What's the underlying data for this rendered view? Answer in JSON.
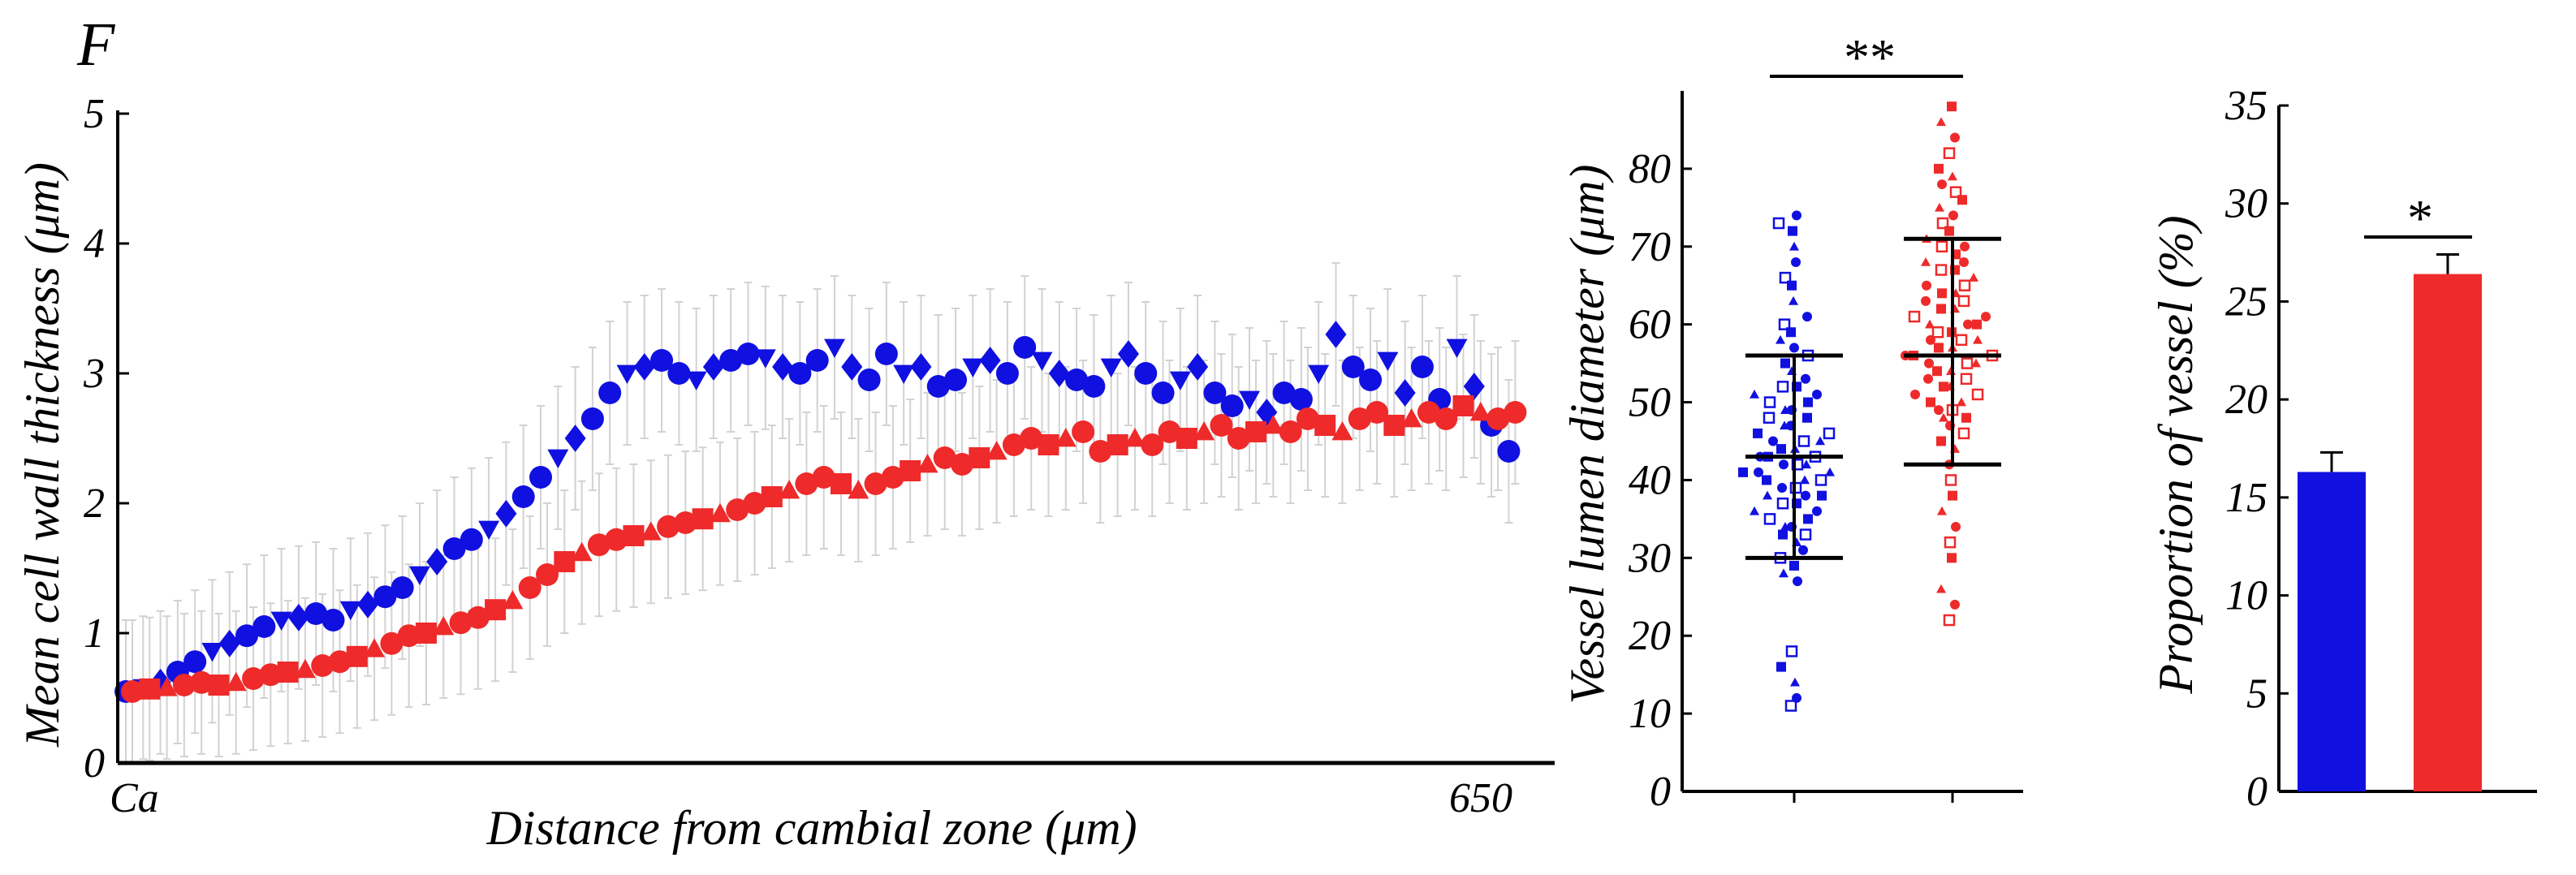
{
  "panel_label": "F",
  "colors": {
    "blue": "#1010e0",
    "red": "#ee2a2a",
    "errorbar": "#d2d2d2",
    "axis": "#000000"
  },
  "chart_data": [
    {
      "type": "scatter",
      "title": "",
      "xlabel": "Distance from cambial zone (μm)",
      "ylabel": "Mean cell wall thickness (μm)",
      "x_tick_labels": [
        "Ca",
        "650"
      ],
      "xlim": [
        0,
        650
      ],
      "ylim": [
        0,
        5
      ],
      "yticks": [
        "0",
        "1",
        "2",
        "3",
        "4",
        "5"
      ],
      "series": [
        {
          "name": "blue",
          "color": "#1010e0",
          "x": [
            0,
            8,
            16,
            24,
            32,
            40,
            48,
            56,
            64,
            72,
            80,
            88,
            96,
            104,
            112,
            120,
            128,
            136,
            144,
            152,
            160,
            168,
            176,
            184,
            192,
            200,
            208,
            216,
            224,
            232,
            240,
            248,
            256,
            264,
            272,
            280,
            288,
            296,
            304,
            312,
            320,
            328,
            336,
            344,
            352,
            360,
            368,
            376,
            384,
            392,
            400,
            408,
            416,
            424,
            432,
            440,
            448,
            456,
            464,
            472,
            480,
            488,
            496,
            504,
            512,
            520,
            528,
            536,
            544,
            552,
            560,
            568,
            576,
            584,
            592,
            600,
            608,
            616,
            624,
            632,
            640
          ],
          "values": [
            0.55,
            0.58,
            0.62,
            0.7,
            0.78,
            0.86,
            0.92,
            0.98,
            1.05,
            1.1,
            1.12,
            1.15,
            1.1,
            1.18,
            1.22,
            1.28,
            1.35,
            1.45,
            1.55,
            1.65,
            1.72,
            1.8,
            1.92,
            2.05,
            2.2,
            2.35,
            2.5,
            2.65,
            2.85,
            3.0,
            3.05,
            3.1,
            3.0,
            2.95,
            3.05,
            3.1,
            3.15,
            3.12,
            3.05,
            3.0,
            3.1,
            3.2,
            3.05,
            2.95,
            3.15,
            3.0,
            3.05,
            2.9,
            2.95,
            3.05,
            3.1,
            3.0,
            3.2,
            3.1,
            3.0,
            2.95,
            2.9,
            3.05,
            3.15,
            3.0,
            2.85,
            2.95,
            3.05,
            2.85,
            2.75,
            2.8,
            2.7,
            2.85,
            2.8,
            3.0,
            3.3,
            3.05,
            2.95,
            3.1,
            2.85,
            3.05,
            2.8,
            3.2,
            2.9,
            2.6,
            2.4
          ],
          "error": 0.55
        },
        {
          "name": "red",
          "color": "#ee2a2a",
          "x": [
            0,
            8,
            16,
            24,
            32,
            40,
            48,
            56,
            64,
            72,
            80,
            88,
            96,
            104,
            112,
            120,
            128,
            136,
            144,
            152,
            160,
            168,
            176,
            184,
            192,
            200,
            208,
            216,
            224,
            232,
            240,
            248,
            256,
            264,
            272,
            280,
            288,
            296,
            304,
            312,
            320,
            328,
            336,
            344,
            352,
            360,
            368,
            376,
            384,
            392,
            400,
            408,
            416,
            424,
            432,
            440,
            448,
            456,
            464,
            472,
            480,
            488,
            496,
            504,
            512,
            520,
            528,
            536,
            544,
            552,
            560,
            568,
            576,
            584,
            592,
            600,
            608,
            616,
            624,
            632,
            640
          ],
          "values": [
            0.55,
            0.57,
            0.58,
            0.6,
            0.62,
            0.6,
            0.62,
            0.65,
            0.68,
            0.7,
            0.72,
            0.75,
            0.78,
            0.82,
            0.88,
            0.92,
            0.98,
            1.0,
            1.05,
            1.08,
            1.12,
            1.18,
            1.25,
            1.35,
            1.45,
            1.55,
            1.62,
            1.68,
            1.72,
            1.75,
            1.78,
            1.82,
            1.85,
            1.88,
            1.92,
            1.95,
            2.0,
            2.05,
            2.1,
            2.15,
            2.2,
            2.15,
            2.1,
            2.15,
            2.2,
            2.25,
            2.3,
            2.35,
            2.3,
            2.35,
            2.4,
            2.45,
            2.5,
            2.45,
            2.5,
            2.55,
            2.4,
            2.45,
            2.5,
            2.45,
            2.55,
            2.5,
            2.55,
            2.6,
            2.5,
            2.55,
            2.6,
            2.55,
            2.65,
            2.6,
            2.55,
            2.65,
            2.7,
            2.6,
            2.65,
            2.7,
            2.65,
            2.75,
            2.7,
            2.65,
            2.7
          ],
          "error": 0.55
        }
      ]
    },
    {
      "type": "scatter",
      "title": "",
      "xlabel": "",
      "ylabel": "Vessel lumen diameter (μm)",
      "ylim": [
        0,
        90
      ],
      "yticks": [
        "0",
        "10",
        "20",
        "30",
        "40",
        "50",
        "60",
        "70",
        "80"
      ],
      "significance": "**",
      "groups": [
        {
          "name": "blue",
          "color": "#1010e0",
          "mean": 43,
          "sd_low": 30,
          "sd_high": 56,
          "values": [
            11,
            12,
            14,
            16,
            18,
            27,
            28,
            29,
            30,
            31,
            32,
            33,
            33,
            34,
            34,
            35,
            35,
            36,
            36,
            37,
            37,
            38,
            38,
            38,
            39,
            39,
            40,
            40,
            40,
            41,
            41,
            41,
            42,
            42,
            42,
            43,
            43,
            43,
            44,
            44,
            45,
            45,
            45,
            46,
            46,
            47,
            47,
            48,
            48,
            49,
            49,
            50,
            50,
            51,
            51,
            52,
            52,
            53,
            54,
            55,
            56,
            57,
            58,
            59,
            60,
            61,
            63,
            65,
            66,
            68,
            70,
            72,
            73,
            74
          ]
        },
        {
          "name": "red",
          "color": "#ee2a2a",
          "mean": 56,
          "sd_low": 42,
          "sd_high": 71,
          "values": [
            22,
            24,
            26,
            30,
            32,
            34,
            36,
            38,
            40,
            42,
            44,
            45,
            46,
            47,
            48,
            48,
            49,
            49,
            50,
            50,
            51,
            51,
            52,
            52,
            53,
            53,
            54,
            54,
            55,
            55,
            55,
            56,
            56,
            56,
            57,
            57,
            58,
            58,
            58,
            59,
            59,
            60,
            60,
            60,
            61,
            61,
            62,
            62,
            63,
            63,
            64,
            64,
            65,
            65,
            66,
            67,
            67,
            68,
            68,
            69,
            70,
            70,
            71,
            72,
            73,
            74,
            75,
            76,
            77,
            78,
            79,
            80,
            82,
            84,
            86,
            88
          ]
        }
      ]
    },
    {
      "type": "bar",
      "title": "",
      "xlabel": "",
      "ylabel": "Proportion of vessel (%)",
      "ylim": [
        0,
        35
      ],
      "yticks": [
        "0",
        "5",
        "10",
        "15",
        "20",
        "25",
        "30",
        "35"
      ],
      "significance": "*",
      "categories": [
        "blue",
        "red"
      ],
      "values": [
        16.3,
        26.4
      ],
      "errors": [
        1.0,
        1.0
      ],
      "colors": [
        "#1010e0",
        "#ee2a2a"
      ]
    }
  ]
}
